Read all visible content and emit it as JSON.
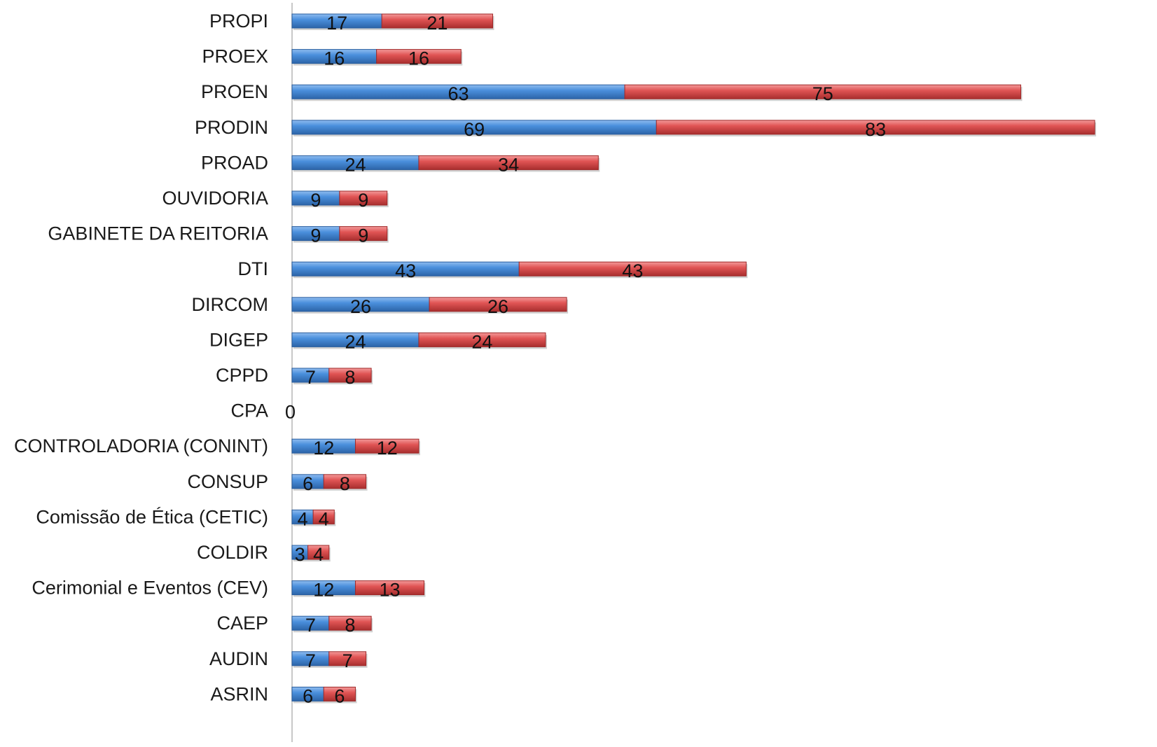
{
  "chart_data": {
    "type": "bar",
    "orientation": "horizontal",
    "stacked": true,
    "categories": [
      "PROPI",
      "PROEX",
      "PROEN",
      "PRODIN",
      "PROAD",
      "OUVIDORIA",
      "GABINETE DA REITORIA",
      "DTI",
      "DIRCOM",
      "DIGEP",
      "CPPD",
      "CPA",
      "CONTROLADORIA (CONINT)",
      "CONSUP",
      "Comissão de Ética (CETIC)",
      "COLDIR",
      "Cerimonial e Eventos (CEV)",
      "CAEP",
      "AUDIN",
      "ASRIN"
    ],
    "series": [
      {
        "color": "#4a8fdc",
        "values": [
          17,
          16,
          63,
          69,
          24,
          9,
          9,
          43,
          26,
          24,
          7,
          0,
          12,
          6,
          4,
          3,
          12,
          7,
          7,
          6
        ]
      },
      {
        "color": "#e05454",
        "values": [
          21,
          16,
          75,
          83,
          34,
          9,
          9,
          43,
          26,
          24,
          8,
          0,
          12,
          8,
          4,
          4,
          13,
          8,
          7,
          6
        ]
      }
    ],
    "zero_label": "0",
    "xlim": [
      0,
      152
    ],
    "grid": false,
    "legend": "none",
    "data_labels": true
  }
}
